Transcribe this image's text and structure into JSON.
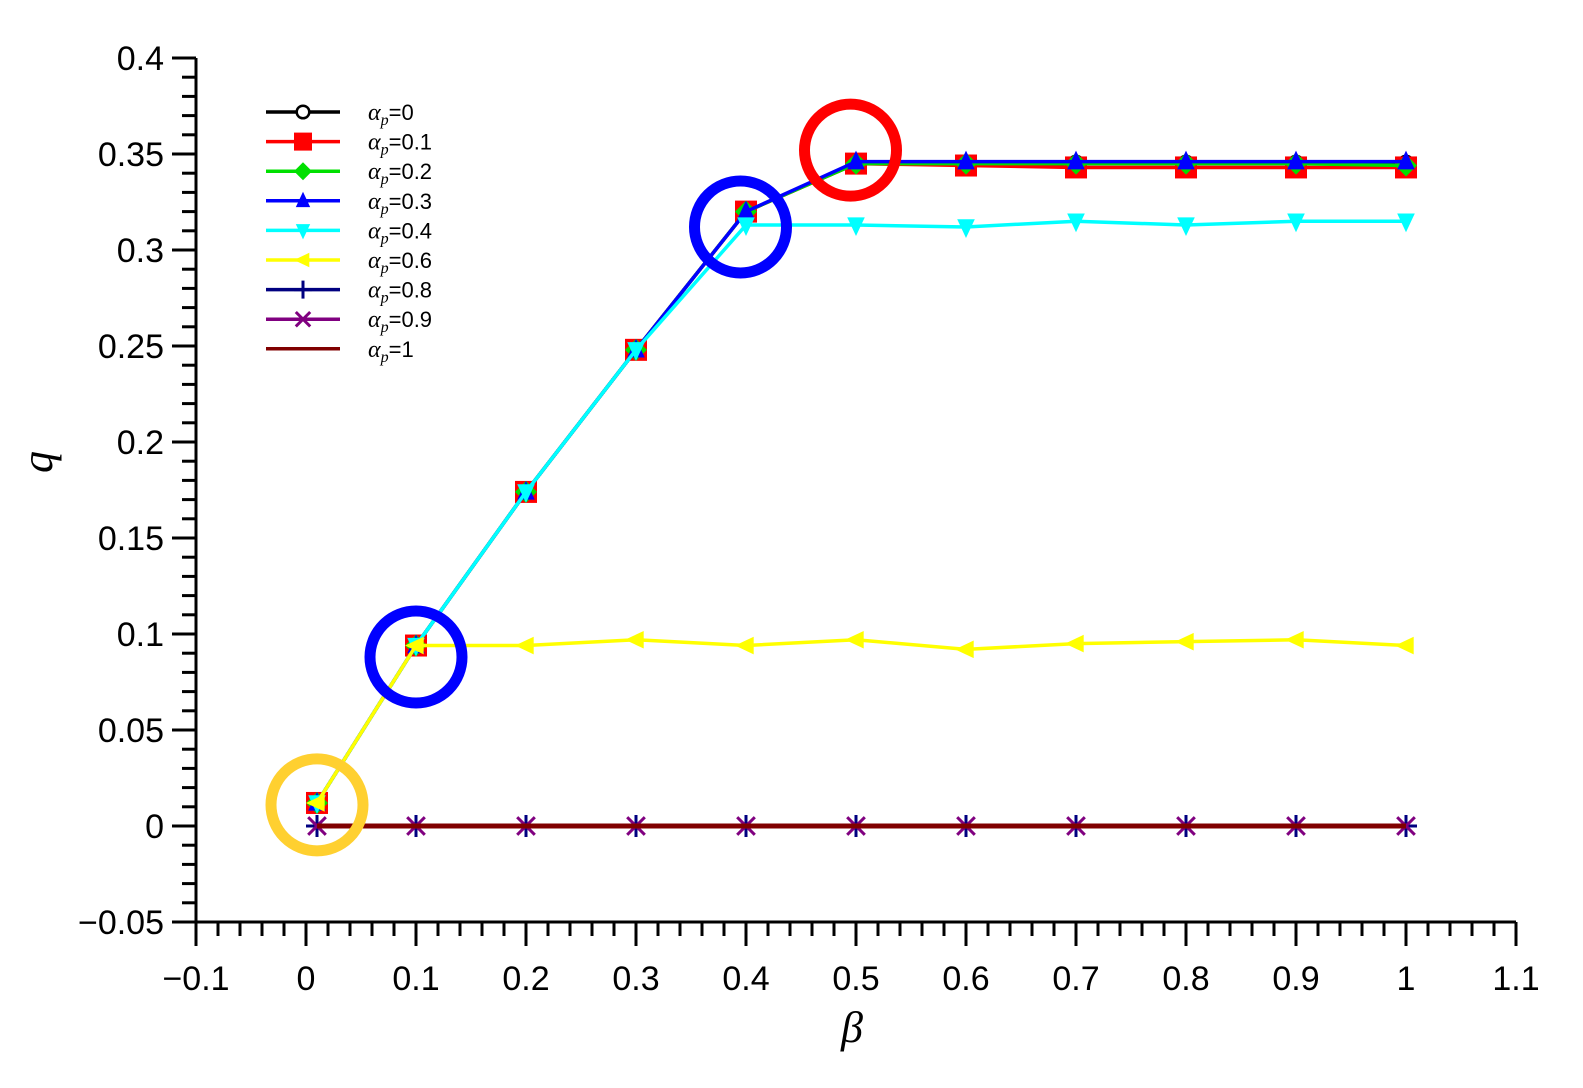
{
  "chart_data": {
    "type": "line",
    "title": "",
    "xlabel": "β",
    "ylabel": "q",
    "xlim": [
      -0.1,
      1.1
    ],
    "ylim": [
      -0.05,
      0.4
    ],
    "grid": false,
    "legend_position": "upper-left",
    "x_ticks": [
      "-0.1",
      "0",
      "0.1",
      "0.2",
      "0.3",
      "0.4",
      "0.5",
      "0.6",
      "0.7",
      "0.8",
      "0.9",
      "1",
      "1.1"
    ],
    "y_ticks": [
      "-0.05",
      "0",
      "0.05",
      "0.1",
      "0.15",
      "0.2",
      "0.25",
      "0.3",
      "0.35",
      "0.4"
    ],
    "x": [
      0.01,
      0.1,
      0.2,
      0.3,
      0.4,
      0.5,
      0.6,
      0.7,
      0.8,
      0.9,
      1.0
    ],
    "series": [
      {
        "name": "αp=0",
        "color": "#000000",
        "marker": "circle-open",
        "values": [
          0.012,
          0.094,
          0.174,
          0.248,
          0.32,
          0.345,
          0.345,
          0.345,
          0.345,
          0.345,
          0.345
        ]
      },
      {
        "name": "αp=0.1",
        "color": "#ff0000",
        "marker": "square",
        "values": [
          0.012,
          0.094,
          0.174,
          0.248,
          0.32,
          0.345,
          0.344,
          0.343,
          0.343,
          0.343,
          0.343
        ]
      },
      {
        "name": "αp=0.2",
        "color": "#00e000",
        "marker": "diamond",
        "values": [
          0.012,
          0.094,
          0.174,
          0.248,
          0.32,
          0.345,
          0.345,
          0.345,
          0.345,
          0.345,
          0.344
        ]
      },
      {
        "name": "αp=0.3",
        "color": "#0000ff",
        "marker": "triangle-up",
        "values": [
          0.012,
          0.094,
          0.174,
          0.248,
          0.32,
          0.346,
          0.346,
          0.346,
          0.346,
          0.346,
          0.346
        ]
      },
      {
        "name": "αp=0.4",
        "color": "#00ffff",
        "marker": "triangle-down",
        "values": [
          0.012,
          0.094,
          0.174,
          0.248,
          0.313,
          0.313,
          0.312,
          0.315,
          0.313,
          0.315,
          0.315
        ]
      },
      {
        "name": "αp=0.6",
        "color": "#ffff00",
        "marker": "triangle-left",
        "values": [
          0.012,
          0.094,
          0.094,
          0.097,
          0.094,
          0.097,
          0.092,
          0.095,
          0.096,
          0.097,
          0.094
        ]
      },
      {
        "name": "αp=0.8",
        "color": "#000080",
        "marker": "plus",
        "values": [
          0,
          0,
          0,
          0,
          0,
          0,
          0,
          0,
          0,
          0,
          0
        ]
      },
      {
        "name": "αp=0.9",
        "color": "#800080",
        "marker": "x",
        "values": [
          0,
          0,
          0,
          0,
          0,
          0,
          0,
          0,
          0,
          0,
          0
        ]
      },
      {
        "name": "αp=1",
        "color": "#800000",
        "marker": "none",
        "values": [
          0,
          0,
          0,
          0,
          0,
          0,
          0,
          0,
          0,
          0,
          0
        ]
      }
    ],
    "annotations": [
      {
        "type": "circle",
        "color": "#ffd030",
        "center": [
          0.01,
          0.011
        ]
      },
      {
        "type": "circle",
        "color": "#0000ff",
        "center": [
          0.1,
          0.088
        ]
      },
      {
        "type": "circle",
        "color": "#0000ff",
        "center": [
          0.395,
          0.312
        ]
      },
      {
        "type": "circle",
        "color": "#ff0000",
        "center": [
          0.495,
          0.352
        ]
      }
    ]
  },
  "legend": {
    "entries": [
      {
        "alpha": "α",
        "sub": "p",
        "value": "=0"
      },
      {
        "alpha": "α",
        "sub": "p",
        "value": "=0.1"
      },
      {
        "alpha": "α",
        "sub": "p",
        "value": "=0.2"
      },
      {
        "alpha": "α",
        "sub": "p",
        "value": "=0.3"
      },
      {
        "alpha": "α",
        "sub": "p",
        "value": "=0.4"
      },
      {
        "alpha": "α",
        "sub": "p",
        "value": "=0.6"
      },
      {
        "alpha": "α",
        "sub": "p",
        "value": "=0.8"
      },
      {
        "alpha": "α",
        "sub": "p",
        "value": "=0.9"
      },
      {
        "alpha": "α",
        "sub": "p",
        "value": "=1"
      }
    ]
  }
}
